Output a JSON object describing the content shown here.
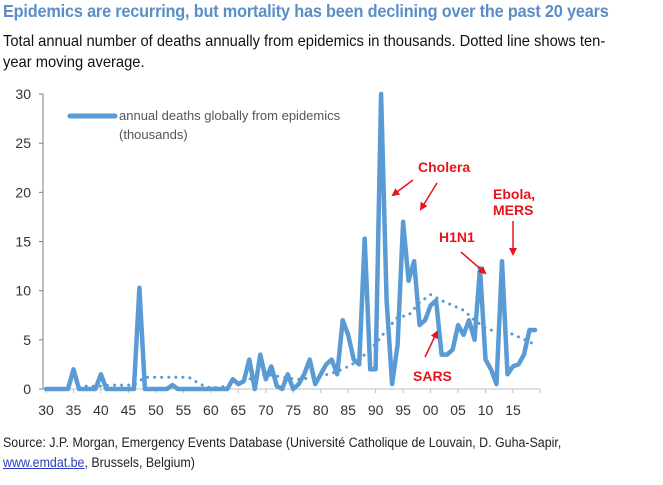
{
  "header": {
    "title": "Epidemics are recurring, but mortality has been declining over the past 20 years",
    "subtitle": "Total annual number of deaths annually from epidemics in thousands. Dotted line shows ten-year moving average."
  },
  "footer": {
    "source_prefix": "Source: J.P. Morgan, Emergency Events Database (Université Catholique de Louvain, D. Guha-Sapir,",
    "source_link": "www.emdat.be",
    "source_suffix": ", Brussels, Belgium)"
  },
  "colors": {
    "series": "#5b9bd5",
    "annotation": "#e8141b",
    "title": "#5a8ec8"
  },
  "chart_data": {
    "type": "line",
    "title": "Epidemics are recurring, but mortality has been declining over the past 20 years",
    "xlabel": "",
    "ylabel": "",
    "ylim": [
      0,
      30
    ],
    "xlim": [
      1930,
      2020
    ],
    "yticks": [
      0,
      5,
      10,
      15,
      20,
      25,
      30
    ],
    "xtick_labels": [
      "30",
      "35",
      "40",
      "45",
      "50",
      "55",
      "60",
      "65",
      "70",
      "75",
      "80",
      "85",
      "90",
      "95",
      "00",
      "05",
      "10",
      "15"
    ],
    "xtick_years": [
      1930,
      1935,
      1940,
      1945,
      1950,
      1955,
      1960,
      1965,
      1970,
      1975,
      1980,
      1985,
      1990,
      1995,
      2000,
      2005,
      2010,
      2015
    ],
    "legend": {
      "position": "top-left",
      "entries": [
        "annual deaths globally from epidemics",
        "(thousands)"
      ]
    },
    "grid": false,
    "series": [
      {
        "name": "annual deaths globally from epidemics (thousands)",
        "style": "solid",
        "x": [
          1930,
          1931,
          1932,
          1933,
          1934,
          1935,
          1936,
          1937,
          1938,
          1939,
          1940,
          1941,
          1942,
          1943,
          1944,
          1945,
          1946,
          1947,
          1948,
          1949,
          1950,
          1951,
          1952,
          1953,
          1954,
          1955,
          1956,
          1957,
          1958,
          1959,
          1960,
          1961,
          1962,
          1963,
          1964,
          1965,
          1966,
          1967,
          1968,
          1969,
          1970,
          1971,
          1972,
          1973,
          1974,
          1975,
          1976,
          1977,
          1978,
          1979,
          1980,
          1981,
          1982,
          1983,
          1984,
          1985,
          1986,
          1987,
          1988,
          1989,
          1990,
          1991,
          1992,
          1993,
          1994,
          1995,
          1996,
          1997,
          1998,
          1999,
          2000,
          2001,
          2002,
          2003,
          2004,
          2005,
          2006,
          2007,
          2008,
          2009,
          2010,
          2011,
          2012,
          2013,
          2014,
          2015,
          2016,
          2017,
          2018,
          2019
        ],
        "values": [
          0,
          0,
          0,
          0,
          0,
          2,
          0,
          0,
          0,
          0,
          1.5,
          0,
          0,
          0,
          0,
          0,
          0,
          10.3,
          0,
          0,
          0,
          0,
          0,
          0.4,
          0,
          0,
          0,
          0,
          0,
          0,
          0,
          0,
          0,
          0,
          1,
          0.5,
          0.8,
          3,
          0,
          3.5,
          1,
          2.3,
          0.3,
          0,
          1.5,
          0,
          0.5,
          1.5,
          3,
          0.5,
          1.5,
          2.5,
          3,
          1.5,
          7,
          5.5,
          3,
          2.5,
          15.3,
          2,
          2,
          30,
          9,
          0.5,
          4.5,
          17,
          11,
          13,
          6.5,
          7,
          8.5,
          9,
          3.5,
          3.5,
          4,
          6.5,
          5.5,
          7,
          5,
          12.3,
          3,
          2,
          0.5,
          13,
          1.5,
          2.3,
          2.5,
          3.5,
          6,
          6
        ]
      },
      {
        "name": "ten-year moving average",
        "style": "dotted",
        "x": [
          1936,
          1938,
          1940,
          1942,
          1944,
          1946,
          1948,
          1950,
          1952,
          1954,
          1956,
          1958,
          1960,
          1962,
          1964,
          1966,
          1968,
          1970,
          1972,
          1974,
          1976,
          1978,
          1980,
          1982,
          1984,
          1986,
          1988,
          1990,
          1992,
          1994,
          1996,
          1998,
          2000,
          2002,
          2004,
          2006,
          2008,
          2010,
          2012,
          2014,
          2016,
          2018,
          2019
        ],
        "values": [
          0.3,
          0.3,
          0.3,
          0.4,
          0.4,
          0.4,
          1.2,
          1.2,
          1.2,
          1.2,
          1.2,
          0.5,
          0.1,
          0.2,
          0.5,
          0.8,
          1.2,
          1.5,
          1.3,
          1.1,
          1.0,
          1.1,
          1.3,
          1.6,
          2.0,
          2.6,
          3.5,
          4.6,
          6.0,
          7.3,
          7.5,
          8.8,
          9.6,
          9.0,
          8.5,
          8.0,
          7.0,
          6.2,
          5.8,
          5.8,
          5.3,
          4.8,
          4.5
        ]
      }
    ],
    "annotations": [
      {
        "text": "Cholera",
        "year": 1991,
        "value": 20,
        "extra_target": {
          "year": 1995,
          "value": 18
        }
      },
      {
        "text": "SARS",
        "year": 2002,
        "value": 6
      },
      {
        "text": "H1N1",
        "year": 2010,
        "value": 12.3
      },
      {
        "text": "Ebola,",
        "line2": "MERS",
        "year": 2014,
        "value": 13.5
      }
    ]
  }
}
